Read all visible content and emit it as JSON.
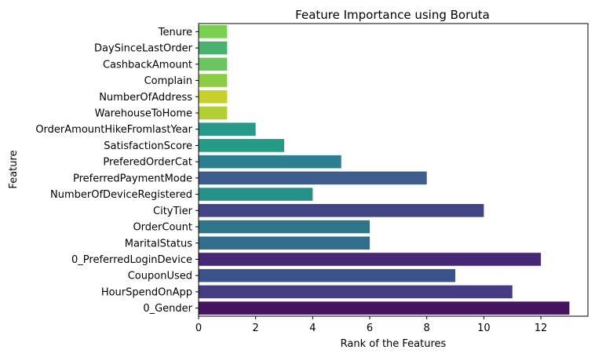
{
  "chart_data": {
    "type": "bar",
    "orientation": "horizontal",
    "title": "Feature Importance using Boruta",
    "xlabel": "Rank of the Features",
    "ylabel": "Feature",
    "xlim": [
      0,
      13.65
    ],
    "xticks": [
      0,
      2,
      4,
      6,
      8,
      10,
      12
    ],
    "grid": false,
    "categories": [
      "Tenure",
      "DaySinceLastOrder",
      "CashbackAmount",
      "Complain",
      "NumberOfAddress",
      "WarehouseToHome",
      "OrderAmountHikeFromlastYear",
      "SatisfactionScore",
      "PreferedOrderCat",
      "PreferredPaymentMode",
      "NumberOfDeviceRegistered",
      "CityTier",
      "OrderCount",
      "MaritalStatus",
      "0_PreferredLoginDevice",
      "CouponUsed",
      "HourSpendOnApp",
      "0_Gender"
    ],
    "values": [
      1,
      1,
      1,
      1,
      1,
      1,
      2,
      3,
      5,
      8,
      4,
      10,
      6,
      6,
      12,
      9,
      11,
      13
    ],
    "colors": [
      "#7ad151",
      "#4ab26e",
      "#6cc45e",
      "#8ccc44",
      "#c6d12a",
      "#b1d034",
      "#27998a",
      "#249b87",
      "#2c7f8e",
      "#3d5d8c",
      "#24918a",
      "#414583",
      "#307688",
      "#316e8d",
      "#462876",
      "#3b538c",
      "#453b83",
      "#46145e"
    ]
  }
}
